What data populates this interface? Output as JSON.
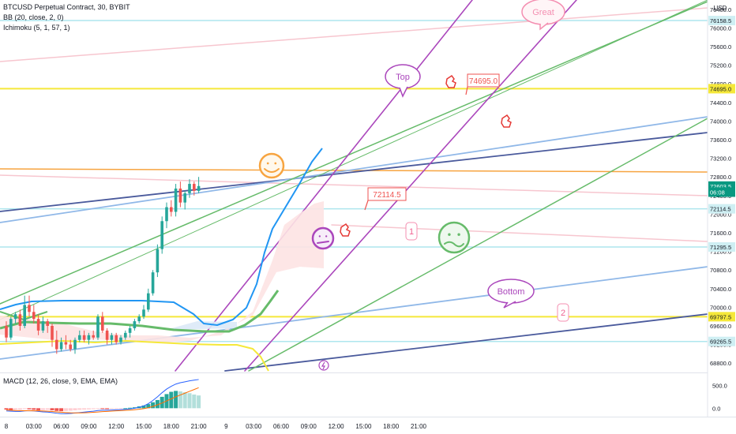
{
  "legend": {
    "symbol": "BTCUSD Perpetual Contract, 30, BYBIT",
    "bb": "BB (20, close, 2, 0)",
    "ichimoku": "Ichimoku (5, 1, 57, 1)",
    "macd": "MACD (12, 26, close, 9, EMA, EMA)"
  },
  "currency": "USD",
  "colors": {
    "bull": "#26a69a",
    "bear": "#ef5350",
    "price_tag": "#089981",
    "yellow": "#f5e83a",
    "orange": "#f7a440",
    "pink": "#f7c6cf",
    "green": "#66bb6a",
    "purple": "#ab47bc",
    "lightblue": "#90b8e8",
    "navy": "#4a5a9c",
    "cyan": "#aee6ee"
  },
  "price_axis": {
    "ticks": [
      "76400.0",
      "76000.0",
      "75600.0",
      "75200.0",
      "74800.0",
      "74400.0",
      "74000.0",
      "73600.0",
      "73200.0",
      "72800.0",
      "72400.0",
      "72000.0",
      "71600.0",
      "71200.0",
      "70800.0",
      "70400.0",
      "70000.0",
      "69600.0",
      "69200.0",
      "68800.0"
    ],
    "tags": [
      {
        "text": "76158.5",
        "value": 76158.5,
        "bg": "#cfeff3",
        "fg": "#131722"
      },
      {
        "text": "74695.0",
        "value": 74695,
        "bg": "#f5e83a",
        "fg": "#131722"
      },
      {
        "text": "72603.5",
        "value": 72603.5,
        "bg": "#089981",
        "fg": "#ffffff"
      },
      {
        "text": "06:08",
        "value": 72473,
        "bg": "#089981",
        "fg": "#ffffff"
      },
      {
        "text": "72114.5",
        "value": 72114.5,
        "bg": "#cfeff3",
        "fg": "#131722"
      },
      {
        "text": "71295.5",
        "value": 71295.5,
        "bg": "#cfeff3",
        "fg": "#131722"
      },
      {
        "text": "69797.5",
        "value": 69797.5,
        "bg": "#f5e83a",
        "fg": "#131722"
      },
      {
        "text": "69265.5",
        "value": 69265.5,
        "bg": "#cfeff3",
        "fg": "#131722"
      }
    ]
  },
  "macd_axis": {
    "ticks": [
      "500.0",
      "0.0"
    ]
  },
  "time_axis": {
    "labels": [
      {
        "text": "8",
        "slot": 0
      },
      {
        "text": "03:00",
        "slot": 6
      },
      {
        "text": "06:00",
        "slot": 12
      },
      {
        "text": "09:00",
        "slot": 18
      },
      {
        "text": "12:00",
        "slot": 24
      },
      {
        "text": "15:00",
        "slot": 30
      },
      {
        "text": "18:00",
        "slot": 36
      },
      {
        "text": "21:00",
        "slot": 42
      },
      {
        "text": "9",
        "slot": 48
      },
      {
        "text": "03:00",
        "slot": 54
      },
      {
        "text": "06:00",
        "slot": 60
      },
      {
        "text": "09:00",
        "slot": 66
      },
      {
        "text": "12:00",
        "slot": 72
      },
      {
        "text": "15:00",
        "slot": 78
      },
      {
        "text": "18:00",
        "slot": 84
      },
      {
        "text": "21:00",
        "slot": 90
      }
    ]
  },
  "annotations": {
    "top": "Top",
    "bottom": "Bottom",
    "great": "Great",
    "note_74695": "74695.0",
    "note_72114": "72114.5",
    "one": "1",
    "two": "2"
  },
  "chart_data": {
    "type": "candlestick",
    "title": "BTCUSD Perpetual Contract, 30, BYBIT",
    "timeframe": "30",
    "y_range": [
      68600,
      76600
    ],
    "last_price": 72603.5,
    "countdown": "06:08",
    "candles": [
      {
        "o": 69600,
        "h": 69700,
        "l": 69250,
        "c": 69350
      },
      {
        "o": 69350,
        "h": 69800,
        "l": 69300,
        "c": 69750
      },
      {
        "o": 69750,
        "h": 69900,
        "l": 69650,
        "c": 69850
      },
      {
        "o": 69850,
        "h": 69950,
        "l": 69500,
        "c": 69600
      },
      {
        "o": 69600,
        "h": 70250,
        "l": 69550,
        "c": 70050
      },
      {
        "o": 70050,
        "h": 70250,
        "l": 69800,
        "c": 69900
      },
      {
        "o": 69900,
        "h": 70050,
        "l": 69650,
        "c": 69750
      },
      {
        "o": 69750,
        "h": 69850,
        "l": 69400,
        "c": 69500
      },
      {
        "o": 69500,
        "h": 69800,
        "l": 69450,
        "c": 69700
      },
      {
        "o": 69700,
        "h": 69750,
        "l": 69450,
        "c": 69600
      },
      {
        "o": 69600,
        "h": 69650,
        "l": 69150,
        "c": 69300
      },
      {
        "o": 69300,
        "h": 69500,
        "l": 69000,
        "c": 69100
      },
      {
        "o": 69100,
        "h": 69350,
        "l": 69050,
        "c": 69250
      },
      {
        "o": 69250,
        "h": 69400,
        "l": 69100,
        "c": 69200
      },
      {
        "o": 69200,
        "h": 69300,
        "l": 69050,
        "c": 69100
      },
      {
        "o": 69100,
        "h": 69350,
        "l": 69000,
        "c": 69300
      },
      {
        "o": 69300,
        "h": 69500,
        "l": 69250,
        "c": 69400
      },
      {
        "o": 69400,
        "h": 69500,
        "l": 69250,
        "c": 69300
      },
      {
        "o": 69300,
        "h": 69450,
        "l": 69200,
        "c": 69400
      },
      {
        "o": 69400,
        "h": 69500,
        "l": 69300,
        "c": 69350
      },
      {
        "o": 69350,
        "h": 69850,
        "l": 69300,
        "c": 69800
      },
      {
        "o": 69800,
        "h": 69900,
        "l": 69450,
        "c": 69500
      },
      {
        "o": 69500,
        "h": 69550,
        "l": 69200,
        "c": 69300
      },
      {
        "o": 69300,
        "h": 69450,
        "l": 69200,
        "c": 69400
      },
      {
        "o": 69400,
        "h": 69450,
        "l": 69200,
        "c": 69250
      },
      {
        "o": 69250,
        "h": 69400,
        "l": 69200,
        "c": 69350
      },
      {
        "o": 69350,
        "h": 69500,
        "l": 69300,
        "c": 69450
      },
      {
        "o": 69450,
        "h": 69600,
        "l": 69350,
        "c": 69550
      },
      {
        "o": 69550,
        "h": 69750,
        "l": 69500,
        "c": 69700
      },
      {
        "o": 69700,
        "h": 69850,
        "l": 69650,
        "c": 69800
      },
      {
        "o": 69800,
        "h": 70050,
        "l": 69750,
        "c": 69950
      },
      {
        "o": 69950,
        "h": 70400,
        "l": 69900,
        "c": 70300
      },
      {
        "o": 70300,
        "h": 70800,
        "l": 70250,
        "c": 70750
      },
      {
        "o": 70750,
        "h": 71350,
        "l": 70650,
        "c": 71250
      },
      {
        "o": 71250,
        "h": 71950,
        "l": 71150,
        "c": 71850
      },
      {
        "o": 71850,
        "h": 72250,
        "l": 71700,
        "c": 72150
      },
      {
        "o": 72150,
        "h": 72300,
        "l": 71950,
        "c": 72050
      },
      {
        "o": 72050,
        "h": 72650,
        "l": 71950,
        "c": 72550
      },
      {
        "o": 72550,
        "h": 72700,
        "l": 72150,
        "c": 72250
      },
      {
        "o": 72250,
        "h": 72500,
        "l": 72100,
        "c": 72450
      },
      {
        "o": 72450,
        "h": 72750,
        "l": 72350,
        "c": 72650
      },
      {
        "o": 72650,
        "h": 72700,
        "l": 72400,
        "c": 72500
      },
      {
        "o": 72500,
        "h": 72800,
        "l": 72450,
        "c": 72603.5
      }
    ],
    "horizontal_levels": [
      76158.5,
      74695.0,
      72114.5,
      71295.5,
      69797.5,
      69265.5
    ],
    "macd": {
      "y_range": [
        -150,
        750
      ],
      "histogram": [
        -30,
        -40,
        -35,
        -30,
        -20,
        -25,
        -35,
        -45,
        -40,
        -35,
        -45,
        -60,
        -65,
        -60,
        -55,
        -45,
        -35,
        -30,
        -25,
        -20,
        -10,
        -15,
        -20,
        -15,
        -10,
        -5,
        0,
        10,
        20,
        40,
        60,
        90,
        130,
        180,
        250,
        310,
        360,
        380,
        370,
        350,
        330,
        300,
        280
      ],
      "macd_line": [
        -60,
        -65,
        -70,
        -70,
        -60,
        -55,
        -60,
        -70,
        -80,
        -85,
        -95,
        -110,
        -120,
        -120,
        -115,
        -105,
        -95,
        -85,
        -75,
        -65,
        -50,
        -45,
        -45,
        -40,
        -35,
        -30,
        -25,
        -15,
        0,
        20,
        50,
        100,
        170,
        250,
        340,
        420,
        480,
        530,
        560,
        580,
        600,
        615,
        630
      ],
      "signal_line": [
        -40,
        -45,
        -50,
        -52,
        -54,
        -55,
        -56,
        -58,
        -62,
        -66,
        -72,
        -80,
        -88,
        -95,
        -100,
        -102,
        -102,
        -100,
        -96,
        -90,
        -82,
        -75,
        -69,
        -63,
        -57,
        -52,
        -47,
        -41,
        -33,
        -23,
        -10,
        10,
        40,
        75,
        115,
        160,
        205,
        250,
        290,
        330,
        370,
        410,
        450
      ]
    }
  }
}
